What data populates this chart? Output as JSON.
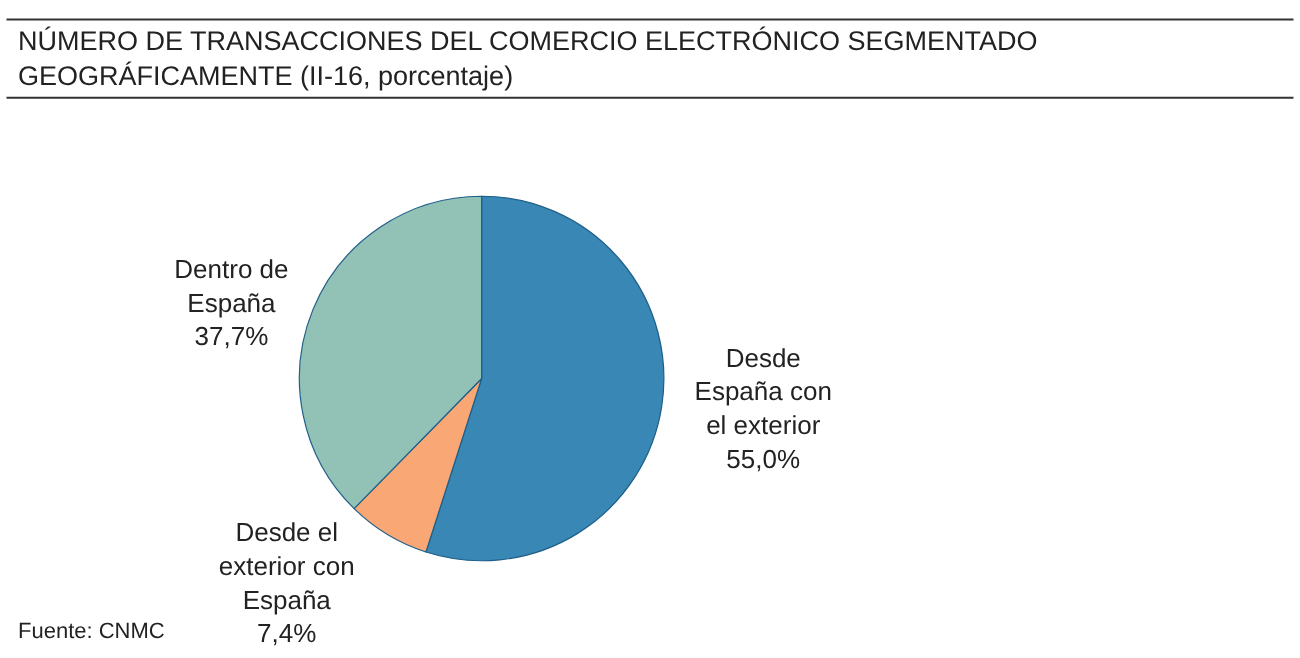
{
  "chart_data": {
    "type": "pie",
    "title": "NÚMERO DE TRANSACCIONES DEL COMERCIO ELECTRÓNICO SEGMENTADO\nGEOGRÁFICAMENTE (II-16, porcentaje)",
    "categories": [
      "Desde\nEspaña con\nel exterior",
      "Desde el\nexterior con\nEspaña",
      "Dentro de\nEspaña"
    ],
    "values": [
      55.0,
      7.4,
      37.7
    ],
    "value_labels": [
      "55,0%",
      "7,4%",
      "37,7%"
    ],
    "colors": [
      "#3887b4",
      "#f9a775",
      "#92c2b5"
    ],
    "annotations": [
      "Fuente: CNMC"
    ]
  }
}
